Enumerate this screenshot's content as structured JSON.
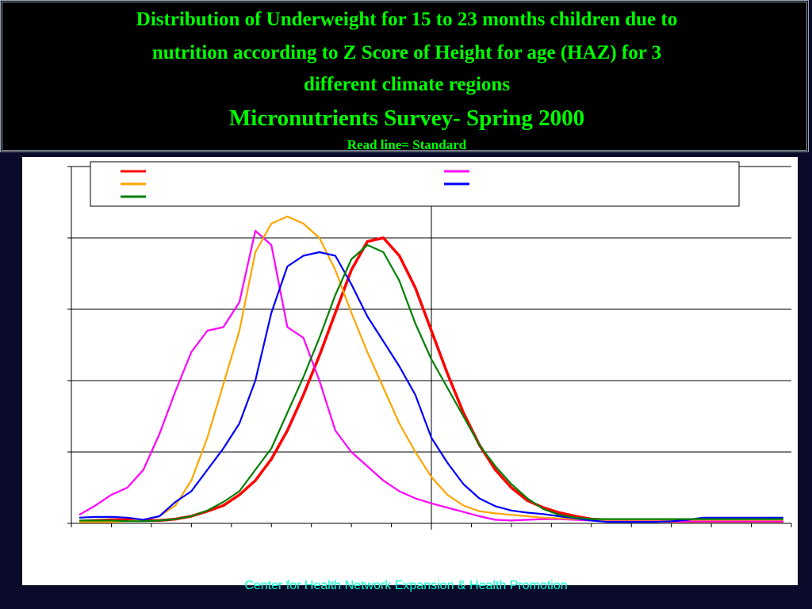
{
  "header": {
    "title_line1": "Distribution of Underweight  for 15 to 23 months children due to",
    "title_line2": "nutrition according to Z Score of Height for age (HAZ) for 3",
    "title_line3": "different climate regions",
    "subtitle": "Micronutrients Survey- Spring 2000",
    "note": "Read line= Standard"
  },
  "footer": {
    "text": "Center for Health Network Expansion & Health Promotion"
  },
  "colors": {
    "background": "#0a0a2a",
    "title_text": "#00ff00",
    "panel": "#ffffff",
    "standard": "#ff0000",
    "magenta": "#ff00ff",
    "orange": "#ffa500",
    "blue": "#0000ff",
    "green": "#008000"
  },
  "chart_data": {
    "type": "line",
    "x": [
      -4.4,
      -4.2,
      -4.0,
      -3.8,
      -3.6,
      -3.4,
      -3.2,
      -3.0,
      -2.8,
      -2.6,
      -2.4,
      -2.2,
      -2.0,
      -1.8,
      -1.6,
      -1.4,
      -1.2,
      -1.0,
      -0.8,
      -0.6,
      -0.4,
      -0.2,
      0.0,
      0.2,
      0.4,
      0.6,
      0.8,
      1.0,
      1.2,
      1.4,
      1.6,
      1.8,
      2.0,
      2.2,
      2.4,
      2.6,
      2.8,
      3.0,
      3.2,
      3.4,
      3.6,
      3.8,
      4.0,
      4.2,
      4.4
    ],
    "xlim": [
      -4.5,
      4.5
    ],
    "ylim": [
      0,
      5
    ],
    "grid": true,
    "legend": "top",
    "series": [
      {
        "color": "#ff0000",
        "values": [
          0.03,
          0.04,
          0.05,
          0.05,
          0.04,
          0.04,
          0.06,
          0.1,
          0.17,
          0.25,
          0.4,
          0.6,
          0.9,
          1.3,
          1.8,
          2.35,
          2.95,
          3.55,
          3.95,
          4.0,
          3.75,
          3.3,
          2.7,
          2.1,
          1.55,
          1.1,
          0.75,
          0.5,
          0.32,
          0.22,
          0.15,
          0.1,
          0.06,
          0.05,
          0.04,
          0.03,
          0.03,
          0.03,
          0.03,
          0.03,
          0.03,
          0.03,
          0.03,
          0.03,
          0.03
        ]
      },
      {
        "color": "#ff00ff",
        "values": [
          0.12,
          0.25,
          0.4,
          0.5,
          0.75,
          1.25,
          1.85,
          2.4,
          2.7,
          2.75,
          3.1,
          4.1,
          3.9,
          2.75,
          2.6,
          2.0,
          1.3,
          1.0,
          0.8,
          0.6,
          0.45,
          0.35,
          0.28,
          0.22,
          0.16,
          0.1,
          0.05,
          0.04,
          0.05,
          0.06,
          0.06,
          0.05,
          0.04,
          0.03,
          0.03,
          0.03,
          0.03,
          0.03,
          0.03,
          0.03,
          0.03,
          0.03,
          0.03,
          0.03,
          0.03
        ]
      },
      {
        "color": "#ffa500",
        "values": [
          0.02,
          0.02,
          0.02,
          0.03,
          0.05,
          0.1,
          0.25,
          0.6,
          1.2,
          1.95,
          2.7,
          3.8,
          4.2,
          4.3,
          4.2,
          4.0,
          3.55,
          2.95,
          2.4,
          1.9,
          1.4,
          1.0,
          0.65,
          0.4,
          0.25,
          0.17,
          0.14,
          0.12,
          0.1,
          0.08,
          0.07,
          0.06,
          0.05,
          0.05,
          0.05,
          0.05,
          0.05,
          0.05,
          0.05,
          0.05,
          0.05,
          0.05,
          0.05,
          0.05,
          0.05
        ]
      },
      {
        "color": "#0000ff",
        "values": [
          0.08,
          0.09,
          0.09,
          0.08,
          0.05,
          0.1,
          0.3,
          0.45,
          0.75,
          1.05,
          1.4,
          2.0,
          2.95,
          3.6,
          3.75,
          3.8,
          3.75,
          3.35,
          2.9,
          2.55,
          2.2,
          1.8,
          1.2,
          0.85,
          0.55,
          0.35,
          0.24,
          0.18,
          0.15,
          0.13,
          0.1,
          0.07,
          0.04,
          0.02,
          0.02,
          0.02,
          0.02,
          0.03,
          0.05,
          0.08,
          0.08,
          0.08,
          0.08,
          0.08,
          0.08
        ]
      },
      {
        "color": "#008000",
        "values": [
          0.04,
          0.04,
          0.04,
          0.03,
          0.03,
          0.04,
          0.06,
          0.1,
          0.18,
          0.3,
          0.45,
          0.75,
          1.05,
          1.55,
          2.05,
          2.6,
          3.2,
          3.7,
          3.9,
          3.8,
          3.4,
          2.8,
          2.3,
          1.9,
          1.5,
          1.1,
          0.8,
          0.55,
          0.35,
          0.2,
          0.12,
          0.08,
          0.06,
          0.06,
          0.06,
          0.06,
          0.06,
          0.06,
          0.06,
          0.06,
          0.06,
          0.06,
          0.06,
          0.06,
          0.06
        ]
      }
    ],
    "standard_note": "Read line= Standard"
  }
}
